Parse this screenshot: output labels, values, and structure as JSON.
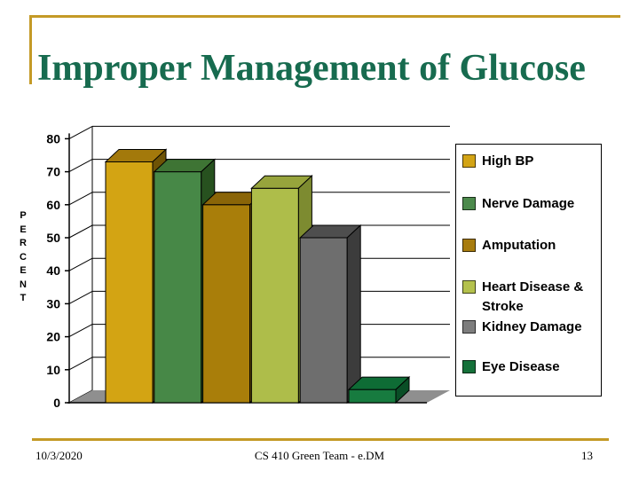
{
  "slide": {
    "title": "Improper Management of Glucose",
    "footer": {
      "date": "10/3/2020",
      "center": "CS 410 Green Team - e.DM",
      "page": "13"
    }
  },
  "colors": {
    "accent_gold": "#C49A26",
    "title_green": "#176B4F"
  },
  "legend": {
    "position": "right",
    "items": [
      {
        "label": "High BP",
        "color": "#D3A415"
      },
      {
        "label": "Nerve Damage",
        "color": "#4C8A4C"
      },
      {
        "label": "Amputation",
        "color": "#A87C0E"
      },
      {
        "label": "Heart Disease & Stroke",
        "color": "#B4C14C"
      },
      {
        "label": "Kidney Damage",
        "color": "#7D7D7D"
      },
      {
        "label": "Eye Disease",
        "color": "#15713A"
      }
    ]
  },
  "chart_data": {
    "type": "bar",
    "style": "3d",
    "title": "",
    "xlabel": "",
    "ylabel": "PERCENT",
    "ylim": [
      0,
      80
    ],
    "yticks": [
      0,
      10,
      20,
      30,
      40,
      50,
      60,
      70,
      80
    ],
    "grid": true,
    "legend_position": "right",
    "categories": [
      "High BP",
      "Nerve Damage",
      "Amputation",
      "Heart Disease & Stroke",
      "Kidney Damage",
      "Eye Disease"
    ],
    "values": [
      73,
      70,
      60,
      65,
      50,
      4
    ],
    "bar_colors": [
      {
        "front": "#D3A413",
        "top": "#A3790B",
        "side": "#6E5305"
      },
      {
        "front": "#478847",
        "top": "#3E7434",
        "side": "#27511F"
      },
      {
        "front": "#A97E0A",
        "top": "#8A6508",
        "side": "#6B4E05"
      },
      {
        "front": "#AEBD4A",
        "top": "#97A43C",
        "side": "#7D8B30"
      },
      {
        "front": "#6E6E6E",
        "top": "#4E4E4E",
        "side": "#3C3C3C"
      },
      {
        "front": "#177B3F",
        "top": "#0E6C35",
        "side": "#094E26"
      }
    ],
    "floor_color": "#8F8F8F"
  }
}
